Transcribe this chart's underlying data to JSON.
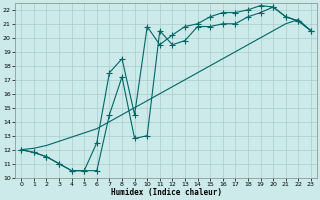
{
  "xlabel": "Humidex (Indice chaleur)",
  "bg_color": "#cceaea",
  "grid_color": "#aacccc",
  "line_color": "#006666",
  "xlim": [
    -0.5,
    23.5
  ],
  "ylim": [
    10.0,
    22.5
  ],
  "xticks": [
    0,
    1,
    2,
    3,
    4,
    5,
    6,
    7,
    8,
    9,
    10,
    11,
    12,
    13,
    14,
    15,
    16,
    17,
    18,
    19,
    20,
    21,
    22,
    23
  ],
  "yticks": [
    10,
    11,
    12,
    13,
    14,
    15,
    16,
    17,
    18,
    19,
    20,
    21,
    22
  ],
  "line1_x": [
    0,
    1,
    2,
    3,
    4,
    5,
    6,
    7,
    8,
    9,
    10,
    11,
    12,
    13,
    14,
    15,
    16,
    17,
    18,
    19,
    20,
    21,
    22,
    23
  ],
  "line1_y": [
    12.0,
    11.8,
    11.5,
    11.0,
    10.5,
    10.5,
    10.5,
    14.5,
    17.2,
    12.8,
    13.0,
    20.5,
    19.5,
    19.8,
    20.8,
    20.8,
    21.0,
    21.0,
    21.5,
    21.8,
    22.2,
    21.5,
    21.2,
    20.5
  ],
  "line2_x": [
    0,
    1,
    2,
    3,
    4,
    5,
    6,
    7,
    8,
    9,
    10,
    11,
    12,
    13,
    14,
    15,
    16,
    17,
    18,
    19,
    20,
    21,
    22,
    23
  ],
  "line2_y": [
    12.0,
    11.8,
    11.5,
    11.0,
    10.5,
    10.5,
    12.5,
    17.5,
    18.5,
    14.5,
    20.8,
    19.5,
    20.2,
    20.8,
    21.0,
    21.5,
    21.8,
    21.8,
    22.0,
    22.3,
    22.2,
    21.5,
    21.2,
    20.5
  ],
  "line3_x": [
    0,
    1,
    2,
    3,
    4,
    5,
    6,
    7,
    8,
    9,
    10,
    11,
    12,
    13,
    14,
    15,
    16,
    17,
    18,
    19,
    20,
    21,
    22,
    23
  ],
  "line3_y": [
    12.0,
    12.1,
    12.3,
    12.6,
    12.9,
    13.2,
    13.5,
    14.0,
    14.5,
    15.0,
    15.5,
    16.0,
    16.5,
    17.0,
    17.5,
    18.0,
    18.5,
    19.0,
    19.5,
    20.0,
    20.5,
    21.0,
    21.3,
    20.5
  ],
  "marker_x1": [
    0,
    1,
    2,
    3,
    4,
    5,
    6,
    7,
    8,
    9,
    10,
    11,
    12,
    13,
    14,
    15,
    16,
    17,
    18,
    19,
    20,
    21,
    22,
    23
  ],
  "marker_x2": [
    0,
    1,
    2,
    3,
    4,
    5,
    6,
    7,
    8,
    9,
    10,
    11,
    12,
    13,
    14,
    15,
    16,
    17,
    18,
    19,
    20,
    21,
    22,
    23
  ],
  "marker_x3": [
    0,
    6,
    7,
    8,
    10,
    11,
    12,
    13,
    14,
    15,
    16,
    17,
    18,
    19,
    20,
    21,
    22,
    23
  ]
}
